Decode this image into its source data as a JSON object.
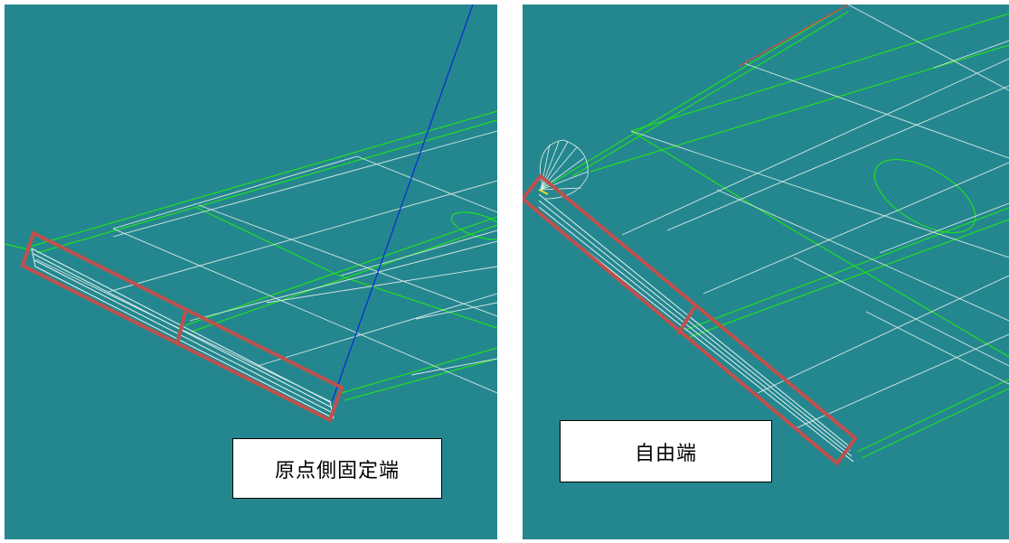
{
  "left_panel": {
    "caption": "原点側固定端"
  },
  "right_panel": {
    "caption": "自由端"
  },
  "colors": {
    "viewport_background": "#24878f",
    "mesh_white": "#d9e8e6",
    "edge_green": "#22dd22",
    "axis_blue": "#1030d0",
    "highlight_red": "#c0504d",
    "caption_background": "#ffffff",
    "caption_border": "#000000"
  }
}
